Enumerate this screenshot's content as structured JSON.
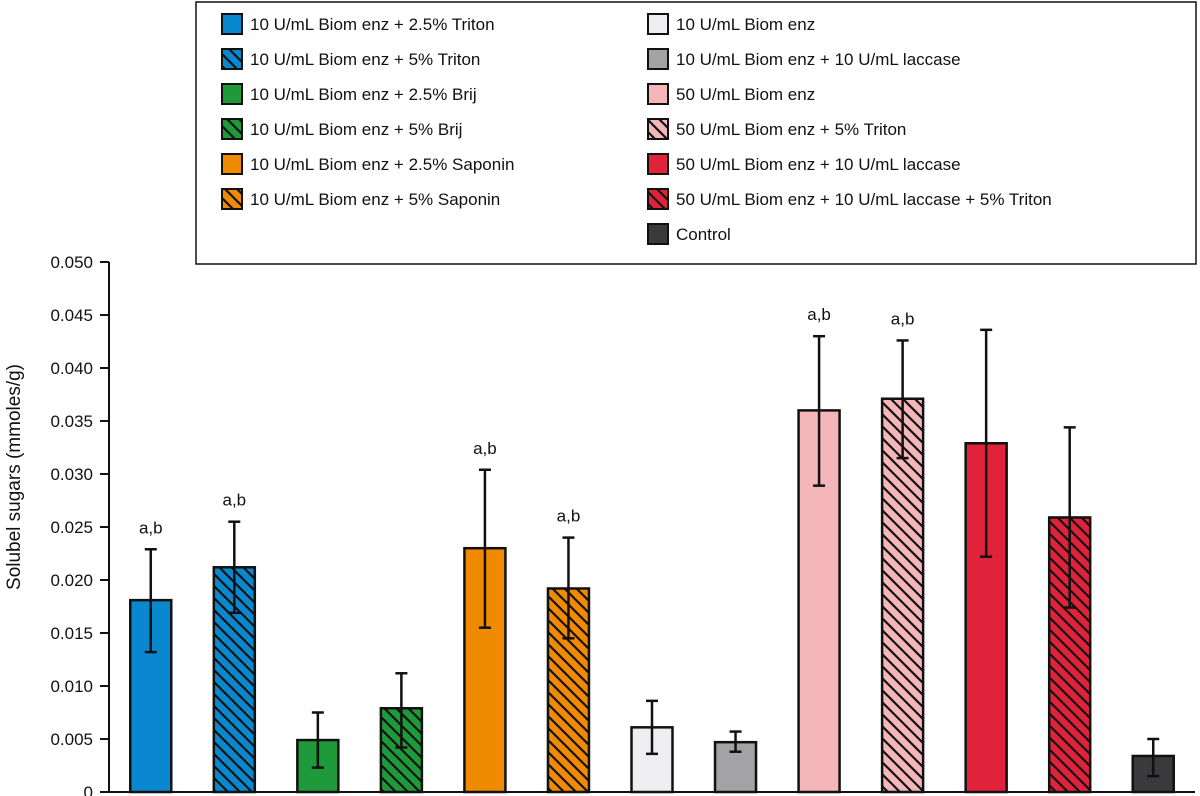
{
  "chart_data": {
    "type": "bar",
    "ylabel": "Solubel sugars (mmoles/g)",
    "xlabel": "",
    "ylim": [
      0,
      0.05
    ],
    "yticks": [
      "0",
      "0.005",
      "0.010",
      "0.015",
      "0.020",
      "0.025",
      "0.030",
      "0.035",
      "0.040",
      "0.045",
      "0.050"
    ],
    "legend_position": "top",
    "series": [
      {
        "name": "10 U/mL Biom enz + 2.5% Triton",
        "value": 0.0181,
        "err_high": 0.0229,
        "err_low": 0.0132,
        "color": "#0a88cf",
        "hatch": false,
        "annotation": "a,b"
      },
      {
        "name": "10 U/mL Biom enz + 5% Triton",
        "value": 0.0212,
        "err_high": 0.0255,
        "err_low": 0.0169,
        "color": "#0a88cf",
        "hatch": true,
        "annotation": "a,b"
      },
      {
        "name": "10 U/mL Biom enz + 2.5% Brij",
        "value": 0.0049,
        "err_high": 0.0075,
        "err_low": 0.0023,
        "color": "#1f9a3a",
        "hatch": false,
        "annotation": ""
      },
      {
        "name": "10 U/mL Biom enz + 5% Brij",
        "value": 0.0079,
        "err_high": 0.0112,
        "err_low": 0.0042,
        "color": "#1f9a3a",
        "hatch": true,
        "annotation": ""
      },
      {
        "name": "10 U/mL Biom enz + 2.5% Saponin",
        "value": 0.023,
        "err_high": 0.0304,
        "err_low": 0.0155,
        "color": "#f08a00",
        "hatch": false,
        "annotation": "a,b"
      },
      {
        "name": "10 U/mL Biom enz + 5% Saponin",
        "value": 0.0192,
        "err_high": 0.024,
        "err_low": 0.0145,
        "color": "#f08a00",
        "hatch": true,
        "annotation": "a,b"
      },
      {
        "name": "10 U/mL Biom enz",
        "value": 0.0061,
        "err_high": 0.0086,
        "err_low": 0.0036,
        "color": "#eeeef0",
        "hatch": false,
        "annotation": ""
      },
      {
        "name": "10 U/mL Biom enz + 10 U/mL laccase",
        "value": 0.0047,
        "err_high": 0.0057,
        "err_low": 0.0038,
        "color": "#a3a3a5",
        "hatch": false,
        "annotation": ""
      },
      {
        "name": "50 U/mL Biom enz",
        "value": 0.036,
        "err_high": 0.043,
        "err_low": 0.0289,
        "color": "#f4b6b8",
        "hatch": false,
        "annotation": "a,b"
      },
      {
        "name": "50 U/mL Biom enz + 5% Triton",
        "value": 0.0371,
        "err_high": 0.0426,
        "err_low": 0.0315,
        "color": "#f4b6b8",
        "hatch": true,
        "annotation": "a,b"
      },
      {
        "name": "50 U/mL Biom enz + 10 U/mL laccase",
        "value": 0.0329,
        "err_high": 0.0436,
        "err_low": 0.0222,
        "color": "#e0233a",
        "hatch": false,
        "annotation": ""
      },
      {
        "name": "50 U/mL Biom enz + 10 U/mL laccase + 5% Triton",
        "value": 0.0259,
        "err_high": 0.0344,
        "err_low": 0.0174,
        "color": "#e0233a",
        "hatch": true,
        "annotation": ""
      },
      {
        "name": "Control",
        "value": 0.0034,
        "err_high": 0.005,
        "err_low": 0.0015,
        "color": "#3a3a3c",
        "hatch": false,
        "annotation": ""
      }
    ]
  }
}
